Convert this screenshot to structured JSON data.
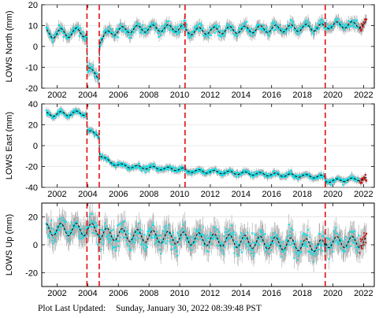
{
  "colors": {
    "obs": "#00e5ee",
    "err": "#a8a8a8",
    "model": "#000000",
    "break": "#e01010",
    "recent": "#d01010"
  },
  "chart_data": [
    {
      "type": "scatter",
      "ylabel": "LOWS North (mm)",
      "ylim": [
        -20,
        20
      ],
      "yticks": [
        -20,
        -10,
        0,
        10,
        20
      ],
      "xlim": [
        2001.0,
        2022.7
      ],
      "xticks": [
        2002,
        2004,
        2006,
        2008,
        2010,
        2012,
        2014,
        2016,
        2018,
        2020,
        2022
      ],
      "breaks": [
        2003.95,
        2004.75,
        2010.35,
        2019.5
      ],
      "model": {
        "segments": [
          {
            "x": [
              2001.3,
              2003.95
            ],
            "start": 6,
            "rate": 0.35,
            "amp": 2.2,
            "offset": 0
          },
          {
            "x": [
              2003.95,
              2004.75
            ],
            "start": -10,
            "rate": -6,
            "amp": 1.0,
            "offset": 0
          },
          {
            "x": [
              2004.75,
              2010.35
            ],
            "start": 8.3,
            "rate": 0.1,
            "amp": 1.7,
            "offset": -5.5,
            "tau": 0.7
          },
          {
            "x": [
              2010.35,
              2019.5
            ],
            "start": 7.2,
            "rate": 0.22,
            "amp": 1.7,
            "offset": 0
          },
          {
            "x": [
              2019.5,
              2022.2
            ],
            "start": 10,
            "rate": 0.2,
            "amp": 1.6,
            "offset": 0
          }
        ]
      },
      "noise": 1.6,
      "errbar": 2.4,
      "recent_from": 2021.75
    },
    {
      "type": "scatter",
      "ylabel": "LOWS East (mm)",
      "ylim": [
        -40,
        40
      ],
      "yticks": [
        -40,
        -20,
        0,
        20,
        40
      ],
      "xlim": [
        2001.0,
        2022.7
      ],
      "xticks": [
        2002,
        2004,
        2006,
        2008,
        2010,
        2012,
        2014,
        2016,
        2018,
        2020,
        2022
      ],
      "breaks": [
        2003.95,
        2004.75,
        2010.35,
        2019.5
      ],
      "model": {
        "segments": [
          {
            "x": [
              2001.3,
              2003.95
            ],
            "start": 30,
            "rate": 0.5,
            "amp": 2.2,
            "offset": 0
          },
          {
            "x": [
              2003.95,
              2004.75
            ],
            "start": 14,
            "rate": -5,
            "amp": 1.5,
            "offset": 0
          },
          {
            "x": [
              2004.75,
              2010.35
            ],
            "start": -19,
            "rate": -0.7,
            "amp": 1.5,
            "offset": 12,
            "tau": 0.6
          },
          {
            "x": [
              2010.35,
              2019.5
            ],
            "start": -24,
            "rate": -0.65,
            "amp": 1.5,
            "offset": 0
          },
          {
            "x": [
              2019.5,
              2022.2
            ],
            "start": -34,
            "rate": 0.8,
            "amp": 1.5,
            "offset": 0
          }
        ]
      },
      "noise": 1.8,
      "errbar": 3.0,
      "recent_from": 2021.75
    },
    {
      "type": "scatter",
      "ylabel": "LOWS Up (mm)",
      "ylim": [
        -30,
        30
      ],
      "yticks": [
        -20,
        0,
        20
      ],
      "xlim": [
        2001.0,
        2022.7
      ],
      "xticks": [
        2002,
        2004,
        2006,
        2008,
        2010,
        2012,
        2014,
        2016,
        2018,
        2020,
        2022
      ],
      "breaks": [
        2003.95,
        2004.75,
        2019.5
      ],
      "model": {
        "segments": [
          {
            "x": [
              2001.3,
              2004.75
            ],
            "start": 11,
            "rate": 0,
            "amp": 4.5,
            "offset": 0
          },
          {
            "x": [
              2004.75,
              2019.5
            ],
            "start": 8,
            "rate": -0.6,
            "amp": 4.5,
            "offset": 0
          },
          {
            "x": [
              2019.5,
              2022.2
            ],
            "start": 2,
            "rate": 0,
            "amp": 4,
            "offset": 0
          }
        ]
      },
      "noise": 5.5,
      "errbar": 7.5,
      "recent_from": 2021.75
    }
  ],
  "footer": {
    "label": "Plot Last Updated:",
    "value": "Sunday, January 30, 2022 08:39:48 PST"
  }
}
